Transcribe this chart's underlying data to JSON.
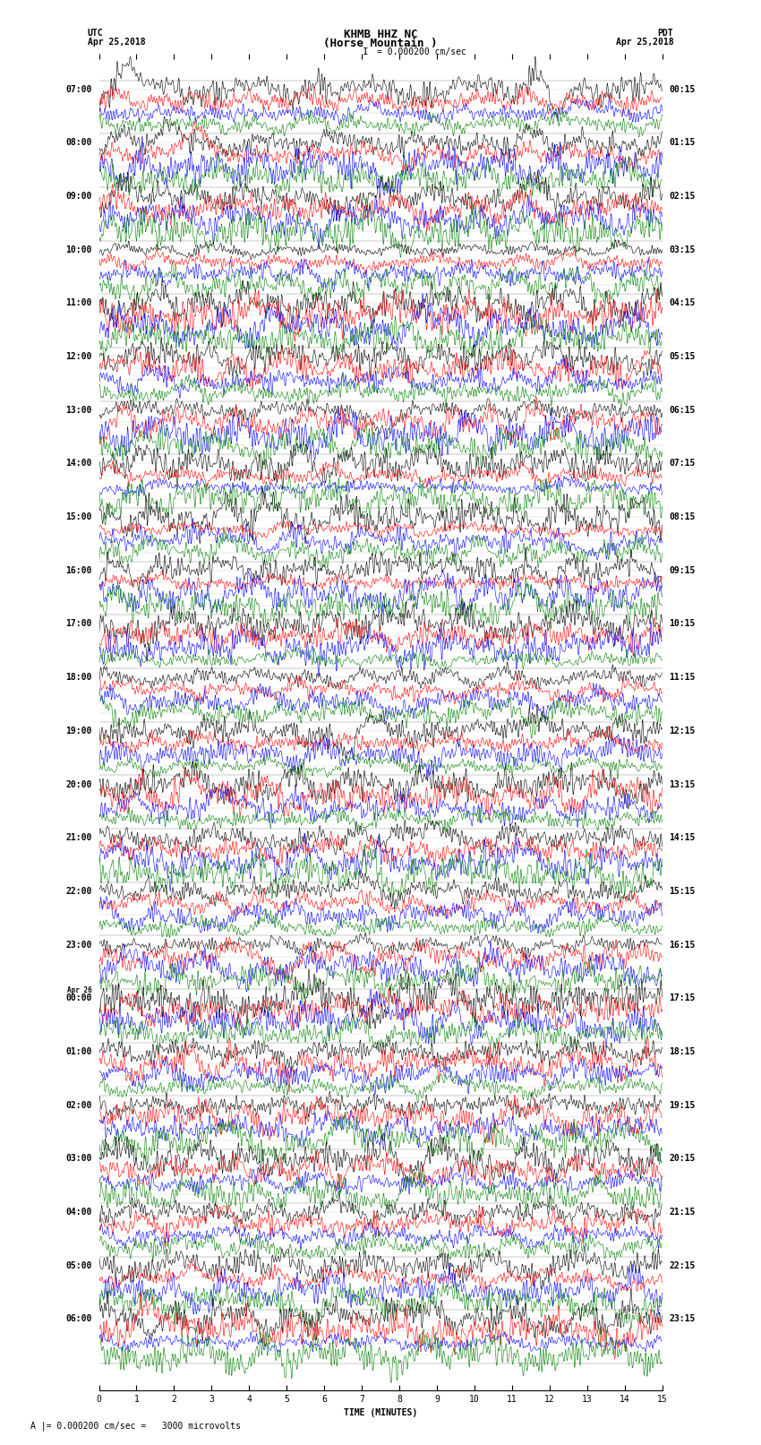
{
  "title_line1": "KHMB HHZ NC",
  "title_line2": "(Horse Mountain )",
  "scale_label": "= 0.000200 cm/sec",
  "bottom_label": "A |= 0.000200 cm/sec =   3000 microvolts",
  "xlabel": "TIME (MINUTES)",
  "utc_header_line1": "UTC",
  "utc_header_line2": "Apr 25,2018",
  "pdt_header_line1": "PDT",
  "pdt_header_line2": "Apr 25,2018",
  "utc_times": [
    "07:00",
    "08:00",
    "09:00",
    "10:00",
    "11:00",
    "12:00",
    "13:00",
    "14:00",
    "15:00",
    "16:00",
    "17:00",
    "18:00",
    "19:00",
    "20:00",
    "21:00",
    "22:00",
    "23:00",
    "Apr 26\n00:00",
    "01:00",
    "02:00",
    "03:00",
    "04:00",
    "05:00",
    "06:00"
  ],
  "pdt_times": [
    "00:15",
    "01:15",
    "02:15",
    "03:15",
    "04:15",
    "05:15",
    "06:15",
    "07:15",
    "08:15",
    "09:15",
    "10:15",
    "11:15",
    "12:15",
    "13:15",
    "14:15",
    "15:15",
    "16:15",
    "17:15",
    "18:15",
    "19:15",
    "20:15",
    "21:15",
    "22:15",
    "23:15"
  ],
  "colors": [
    "black",
    "red",
    "blue",
    "green"
  ],
  "n_groups": 24,
  "n_points": 1800,
  "x_min": 0,
  "x_max": 15,
  "bg_color": "white",
  "font_size_title": 9,
  "font_size_labels": 7,
  "font_size_ticks": 7,
  "linewidth": 0.4
}
